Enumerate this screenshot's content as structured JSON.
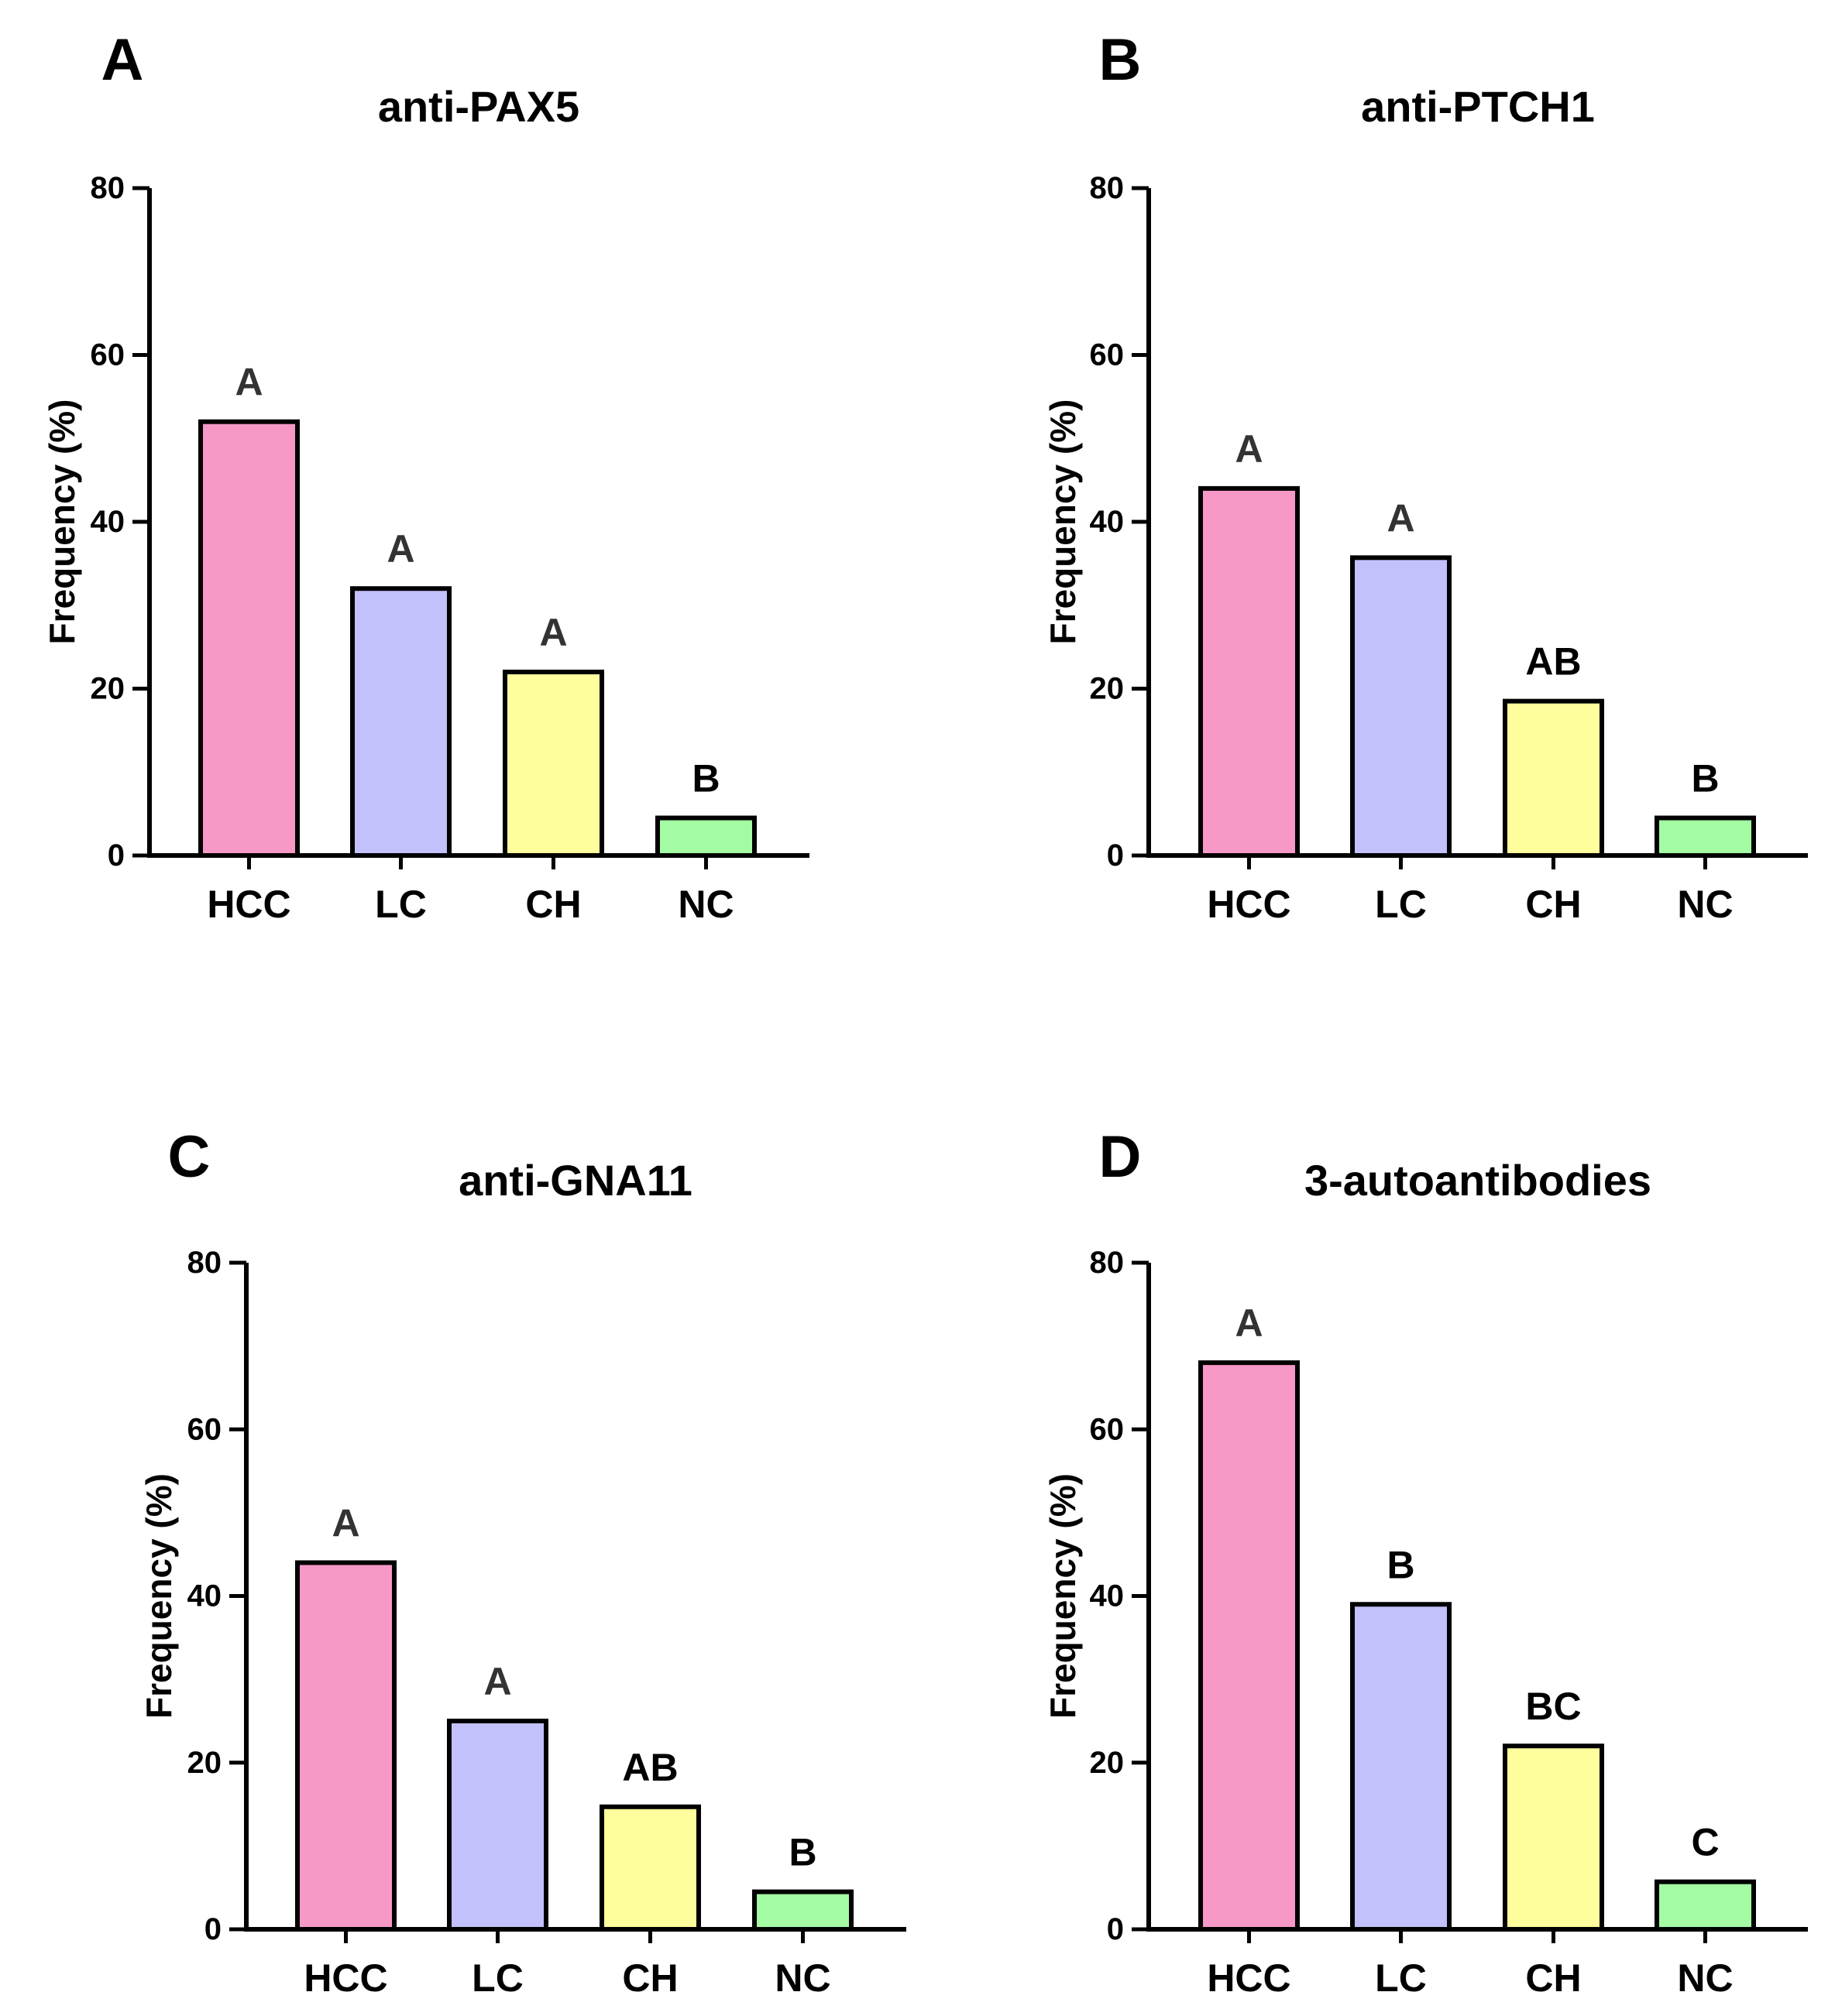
{
  "colors": {
    "HCC": "#f799c6",
    "LC": "#c2c1fb",
    "CH": "#fefe9c",
    "NC": "#a3fba3",
    "axis": "#000000"
  },
  "chart_data": [
    {
      "panel": "A",
      "type": "bar",
      "title": "anti-PAX5",
      "ylabel": "Frequency (%)",
      "xlabel": "",
      "ylim": [
        0,
        80
      ],
      "yticks": [
        "0",
        "20",
        "40",
        "60",
        "80"
      ],
      "categories": [
        "HCC",
        "LC",
        "CH",
        "NC"
      ],
      "values": [
        52,
        32,
        22,
        4.5
      ],
      "significance": [
        "A",
        "A",
        "A",
        "B"
      ]
    },
    {
      "panel": "B",
      "type": "bar",
      "title": "anti-PTCH1",
      "ylabel": "Frequency (%)",
      "xlabel": "",
      "ylim": [
        0,
        80
      ],
      "yticks": [
        "0",
        "20",
        "40",
        "60",
        "80"
      ],
      "categories": [
        "HCC",
        "LC",
        "CH",
        "NC"
      ],
      "values": [
        44,
        35.7,
        18.5,
        4.5
      ],
      "significance": [
        "A",
        "A",
        "AB",
        "B"
      ]
    },
    {
      "panel": "C",
      "type": "bar",
      "title": "anti-GNA11",
      "ylabel": "Frequency (%)",
      "xlabel": "",
      "ylim": [
        0,
        80
      ],
      "yticks": [
        "0",
        "20",
        "40",
        "60",
        "80"
      ],
      "categories": [
        "HCC",
        "LC",
        "CH",
        "NC"
      ],
      "values": [
        44,
        25,
        14.7,
        4.5
      ],
      "significance": [
        "A",
        "A",
        "AB",
        "B"
      ]
    },
    {
      "panel": "D",
      "type": "bar",
      "title": "3-autoantibodies",
      "ylabel": "Frequency (%)",
      "xlabel": "",
      "ylim": [
        0,
        80
      ],
      "yticks": [
        "0",
        "20",
        "40",
        "60",
        "80"
      ],
      "categories": [
        "HCC",
        "LC",
        "CH",
        "NC"
      ],
      "values": [
        68,
        39,
        22,
        5.7
      ],
      "significance": [
        "A",
        "B",
        "BC",
        "C"
      ]
    }
  ]
}
